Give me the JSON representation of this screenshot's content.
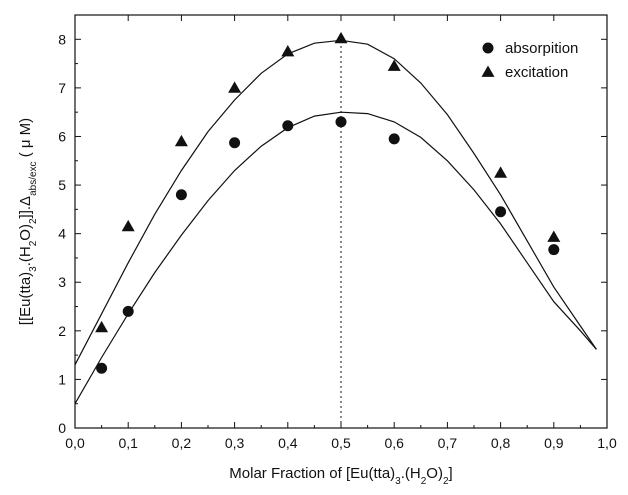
{
  "chart_data": {
    "type": "scatter",
    "title": "",
    "xlabel": {
      "parts": [
        {
          "t": "Molar Fraction of [Eu(tta)"
        },
        {
          "t": "3",
          "sub": true
        },
        {
          "t": ".(H"
        },
        {
          "t": "2",
          "sub": true
        },
        {
          "t": "O)"
        },
        {
          "t": "2",
          "sub": true
        },
        {
          "t": "]"
        }
      ]
    },
    "ylabel": {
      "parts": [
        {
          "t": "[[Eu(tta)"
        },
        {
          "t": "3",
          "sub": true
        },
        {
          "t": ".(H"
        },
        {
          "t": "2",
          "sub": true
        },
        {
          "t": "O)"
        },
        {
          "t": "2",
          "sub": true
        },
        {
          "t": "]]."
        },
        {
          "t": "Δ"
        },
        {
          "t": "abs/exc",
          "sub": true
        },
        {
          "t": " ( μ M)"
        }
      ]
    },
    "xlim": [
      0.0,
      1.0
    ],
    "ylim": [
      0.0,
      8.5
    ],
    "xticks": [
      {
        "v": 0.0,
        "label": "0,0"
      },
      {
        "v": 0.1,
        "label": "0,1"
      },
      {
        "v": 0.2,
        "label": "0,2"
      },
      {
        "v": 0.3,
        "label": "0,3"
      },
      {
        "v": 0.4,
        "label": "0,4"
      },
      {
        "v": 0.5,
        "label": "0,5"
      },
      {
        "v": 0.6,
        "label": "0,6"
      },
      {
        "v": 0.7,
        "label": "0,7"
      },
      {
        "v": 0.8,
        "label": "0,8"
      },
      {
        "v": 0.9,
        "label": "0,9"
      },
      {
        "v": 1.0,
        "label": "1,0"
      }
    ],
    "yticks": [
      {
        "v": 0,
        "label": "0"
      },
      {
        "v": 1,
        "label": "1"
      },
      {
        "v": 2,
        "label": "2"
      },
      {
        "v": 3,
        "label": "3"
      },
      {
        "v": 4,
        "label": "4"
      },
      {
        "v": 5,
        "label": "5"
      },
      {
        "v": 6,
        "label": "6"
      },
      {
        "v": 7,
        "label": "7"
      },
      {
        "v": 8,
        "label": "8"
      }
    ],
    "grid": false,
    "legend": "top-right",
    "series": [
      {
        "name": "absorpition",
        "marker": "circle",
        "x": [
          0.05,
          0.1,
          0.2,
          0.3,
          0.4,
          0.5,
          0.6,
          0.8,
          0.9
        ],
        "y": [
          1.23,
          2.4,
          4.8,
          5.87,
          6.22,
          6.3,
          5.95,
          4.45,
          3.67
        ],
        "fit": {
          "x": [
            0.0,
            0.05,
            0.1,
            0.15,
            0.2,
            0.25,
            0.3,
            0.35,
            0.4,
            0.45,
            0.5,
            0.55,
            0.6,
            0.65,
            0.7,
            0.75,
            0.8,
            0.85,
            0.9,
            0.95,
            0.98
          ],
          "y": [
            0.5,
            1.45,
            2.35,
            3.2,
            3.97,
            4.68,
            5.3,
            5.8,
            6.18,
            6.42,
            6.5,
            6.47,
            6.3,
            5.98,
            5.5,
            4.9,
            4.2,
            3.4,
            2.6,
            2.0,
            1.62
          ]
        }
      },
      {
        "name": "excitation",
        "marker": "triangle",
        "x": [
          0.05,
          0.1,
          0.2,
          0.3,
          0.4,
          0.5,
          0.6,
          0.8,
          0.9
        ],
        "y": [
          2.07,
          4.15,
          5.9,
          7.0,
          7.75,
          8.02,
          7.45,
          5.25,
          3.93
        ],
        "fit": {
          "x": [
            0.0,
            0.05,
            0.1,
            0.15,
            0.2,
            0.25,
            0.3,
            0.35,
            0.4,
            0.45,
            0.5,
            0.55,
            0.6,
            0.65,
            0.7,
            0.75,
            0.8,
            0.85,
            0.9,
            0.95,
            0.98
          ],
          "y": [
            1.3,
            2.35,
            3.4,
            4.4,
            5.3,
            6.1,
            6.75,
            7.3,
            7.7,
            7.92,
            7.98,
            7.9,
            7.6,
            7.1,
            6.45,
            5.65,
            4.8,
            3.85,
            2.9,
            2.1,
            1.62
          ]
        }
      }
    ],
    "reference_line": {
      "x": 0.5,
      "y_from": 0.0,
      "y_to": 8.02,
      "style": "dotted"
    }
  }
}
